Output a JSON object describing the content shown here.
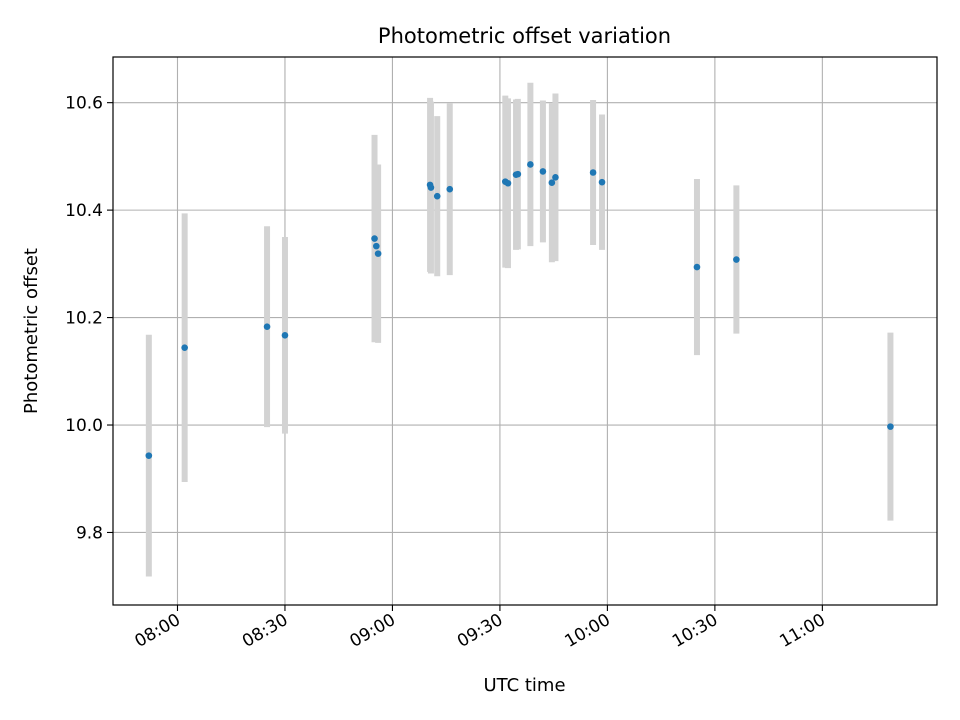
{
  "chart_data": {
    "type": "scatter",
    "title": "Photometric offset variation",
    "xlabel": "UTC time",
    "ylabel": "Photometric offset",
    "xlim": [
      "07:42",
      "11:32"
    ],
    "ylim": [
      9.665,
      10.685
    ],
    "x_ticks": [
      "08:00",
      "08:30",
      "09:00",
      "09:30",
      "10:00",
      "10:30",
      "11:00"
    ],
    "y_ticks": [
      "9.8",
      "10.0",
      "10.2",
      "10.4",
      "10.6"
    ],
    "grid": true,
    "point_color": "#1f77b4",
    "errorbar_color": "#d3d3d3",
    "points": [
      {
        "x": "07:52:00",
        "y": 9.943,
        "err": 0.225
      },
      {
        "x": "08:02:00",
        "y": 10.144,
        "err": 0.25
      },
      {
        "x": "08:25:00",
        "y": 10.183,
        "err": 0.187
      },
      {
        "x": "08:30:00",
        "y": 10.167,
        "err": 0.183
      },
      {
        "x": "08:55:00",
        "y": 10.347,
        "err": 0.193
      },
      {
        "x": "08:55:30",
        "y": 10.333,
        "err": 0.152
      },
      {
        "x": "08:56:00",
        "y": 10.319,
        "err": 0.166
      },
      {
        "x": "09:10:30",
        "y": 10.447,
        "err": 0.162
      },
      {
        "x": "09:10:45",
        "y": 10.442,
        "err": 0.16
      },
      {
        "x": "09:12:30",
        "y": 10.426,
        "err": 0.149
      },
      {
        "x": "09:16:00",
        "y": 10.439,
        "err": 0.16
      },
      {
        "x": "09:31:30",
        "y": 10.453,
        "err": 0.16
      },
      {
        "x": "09:32:15",
        "y": 10.45,
        "err": 0.158
      },
      {
        "x": "09:34:30",
        "y": 10.466,
        "err": 0.14
      },
      {
        "x": "09:35:00",
        "y": 10.467,
        "err": 0.14
      },
      {
        "x": "09:38:30",
        "y": 10.485,
        "err": 0.152
      },
      {
        "x": "09:42:00",
        "y": 10.472,
        "err": 0.132
      },
      {
        "x": "09:44:30",
        "y": 10.451,
        "err": 0.148
      },
      {
        "x": "09:45:30",
        "y": 10.461,
        "err": 0.156
      },
      {
        "x": "09:56:00",
        "y": 10.47,
        "err": 0.135
      },
      {
        "x": "09:58:30",
        "y": 10.452,
        "err": 0.126
      },
      {
        "x": "10:25:00",
        "y": 10.294,
        "err": 0.164
      },
      {
        "x": "10:36:00",
        "y": 10.308,
        "err": 0.138
      },
      {
        "x": "11:19:00",
        "y": 9.997,
        "err": 0.175
      }
    ]
  }
}
